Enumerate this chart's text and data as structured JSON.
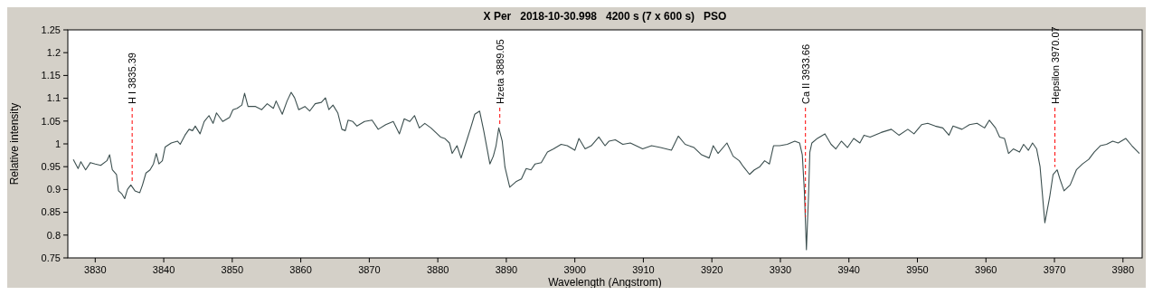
{
  "chart_data": {
    "type": "line",
    "title": "X Per   2018-10-30.998   4200 s (7 x 600 s)   PSO",
    "xlabel": "Wavelength (Angstrom)",
    "ylabel": "Relative intensity",
    "xlim": [
      3826,
      3982.8
    ],
    "xticks": [
      3830,
      3840,
      3850,
      3860,
      3870,
      3880,
      3890,
      3900,
      3910,
      3920,
      3930,
      3940,
      3950,
      3960,
      3970,
      3980
    ],
    "ylim": [
      0.75,
      1.25
    ],
    "yticks": [
      0.75,
      0.8,
      0.85,
      0.9,
      0.95,
      1,
      1.05,
      1.1,
      1.15,
      1.2,
      1.25
    ],
    "grid": false,
    "series": [
      {
        "color": "#3c4f4f",
        "x": [
          3826.8,
          3827.5,
          3827.9,
          3828.6,
          3829.3,
          3830,
          3830.8,
          3831.7,
          3832.1,
          3832.5,
          3833.1,
          3833.4,
          3833.9,
          3834.3,
          3834.7,
          3835.2,
          3835.8,
          3836.5,
          3836.9,
          3837.4,
          3838,
          3838.5,
          3838.9,
          3839.3,
          3839.8,
          3840.2,
          3841.1,
          3842,
          3842.4,
          3843.1,
          3843.7,
          3844.2,
          3844.6,
          3845.3,
          3845.9,
          3846.6,
          3847.2,
          3847.7,
          3848.6,
          3849.6,
          3850.1,
          3850.7,
          3851.4,
          3851.8,
          3852.3,
          3853.4,
          3854.3,
          3855.1,
          3856,
          3856.4,
          3857.3,
          3858,
          3858.6,
          3859.1,
          3859.7,
          3860.6,
          3861.3,
          3862.1,
          3863,
          3863.6,
          3864.1,
          3864.7,
          3865.4,
          3866,
          3866.5,
          3866.9,
          3867.6,
          3868.2,
          3869.3,
          3870.4,
          3871.3,
          3872.4,
          3873.5,
          3874.4,
          3875.1,
          3875.9,
          3876.6,
          3877.3,
          3878.1,
          3879,
          3879.7,
          3880.4,
          3881,
          3881.7,
          3882.1,
          3882.8,
          3883.4,
          3884.1,
          3884.8,
          3885.4,
          3886.1,
          3886.7,
          3887.2,
          3887.6,
          3888.1,
          3888.5,
          3888.9,
          3889.4,
          3889.8,
          3890.5,
          3891.4,
          3892.2,
          3892.9,
          3893.6,
          3894.2,
          3895.1,
          3896,
          3896.9,
          3898,
          3898.9,
          3900,
          3900.6,
          3901.5,
          3902.4,
          3903.5,
          3904.4,
          3905,
          3905.9,
          3907,
          3908.1,
          3909.9,
          3911.2,
          3912.5,
          3914.1,
          3915.1,
          3916.1,
          3917.4,
          3918.5,
          3919.6,
          3920.2,
          3920.9,
          3922.2,
          3923.1,
          3924,
          3924.6,
          3925.5,
          3926.2,
          3927,
          3927.7,
          3928.4,
          3929,
          3929.9,
          3931,
          3932.1,
          3932.8,
          3933.2,
          3933.5,
          3933.8,
          3934.1,
          3934.3,
          3934.6,
          3935.4,
          3936.5,
          3937.4,
          3938.1,
          3938.9,
          3939.8,
          3940.7,
          3941.6,
          3942.2,
          3943.1,
          3944.7,
          3946.2,
          3947.3,
          3948.6,
          3949.5,
          3950.6,
          3951.5,
          3952.6,
          3953.7,
          3954.6,
          3955.2,
          3956.5,
          3957.6,
          3958.7,
          3959.8,
          3960.5,
          3961.4,
          3962,
          3962.7,
          3963.3,
          3964,
          3964.9,
          3965.5,
          3966.2,
          3966.8,
          3967.4,
          3967.9,
          3968.6,
          3969.3,
          3969.8,
          3970.4,
          3970.8,
          3971.4,
          3972.3,
          3973.2,
          3974.1,
          3975,
          3975.8,
          3976.7,
          3977.6,
          3978.5,
          3979.3,
          3980.4,
          3981.3,
          3982.4
        ],
        "values": [
          0.966,
          0.946,
          0.961,
          0.943,
          0.959,
          0.956,
          0.953,
          0.963,
          0.976,
          0.943,
          0.933,
          0.897,
          0.89,
          0.88,
          0.9,
          0.91,
          0.897,
          0.893,
          0.91,
          0.936,
          0.943,
          0.956,
          0.979,
          0.956,
          0.963,
          0.993,
          1.002,
          1.006,
          0.999,
          1.019,
          1.032,
          1.029,
          1.039,
          1.022,
          1.049,
          1.062,
          1.045,
          1.068,
          1.049,
          1.058,
          1.075,
          1.078,
          1.085,
          1.111,
          1.082,
          1.082,
          1.075,
          1.088,
          1.078,
          1.094,
          1.065,
          1.094,
          1.113,
          1.101,
          1.075,
          1.082,
          1.072,
          1.088,
          1.091,
          1.101,
          1.075,
          1.085,
          1.068,
          1.032,
          1.029,
          1.052,
          1.049,
          1.039,
          1.049,
          1.052,
          1.032,
          1.042,
          1.049,
          1.022,
          1.055,
          1.049,
          1.062,
          1.035,
          1.045,
          1.035,
          1.025,
          1.015,
          1.012,
          1.002,
          0.979,
          0.996,
          0.969,
          1.002,
          1.035,
          1.065,
          1.072,
          1.029,
          0.989,
          0.956,
          0.973,
          0.996,
          1.035,
          1.006,
          0.949,
          0.905,
          0.917,
          0.923,
          0.946,
          0.943,
          0.956,
          0.959,
          0.982,
          0.989,
          0.999,
          0.996,
          0.986,
          1.012,
          0.989,
          0.996,
          1.015,
          0.996,
          1.006,
          1.009,
          0.999,
          1.002,
          0.989,
          0.996,
          0.992,
          0.986,
          1.017,
          0.999,
          0.992,
          0.976,
          0.969,
          0.996,
          0.979,
          1.002,
          0.973,
          0.963,
          0.95,
          0.933,
          0.943,
          0.95,
          0.963,
          0.956,
          0.996,
          0.996,
          0.999,
          1.006,
          1.002,
          0.976,
          0.897,
          0.768,
          0.883,
          0.982,
          1.002,
          1.012,
          1.022,
          0.999,
          0.989,
          1.006,
          0.992,
          1.012,
          1.002,
          1.019,
          1.015,
          1.025,
          1.032,
          1.019,
          1.032,
          1.022,
          1.042,
          1.045,
          1.039,
          1.035,
          1.019,
          1.039,
          1.032,
          1.042,
          1.045,
          1.035,
          1.052,
          1.035,
          1.015,
          1.012,
          0.979,
          0.989,
          0.982,
          0.999,
          0.986,
          1.002,
          0.989,
          0.95,
          0.827,
          0.883,
          0.933,
          0.943,
          0.923,
          0.897,
          0.91,
          0.943,
          0.956,
          0.966,
          0.982,
          0.996,
          0.999,
          1.006,
          1.002,
          1.012,
          0.996,
          0.979
        ]
      }
    ],
    "ref_lines": [
      {
        "axis": "x",
        "value": 3835.39,
        "label": "H I 3835.39",
        "color": "#ff0000",
        "line_style": "dashed"
      },
      {
        "axis": "x",
        "value": 3889.05,
        "label": "Hzeta 3889.05",
        "color": "#ff0000",
        "line_style": "dashed"
      },
      {
        "axis": "x",
        "value": 3933.66,
        "label": "Ca II 3933.66",
        "color": "#ff0000",
        "line_style": "dashed"
      },
      {
        "axis": "x",
        "value": 3970.07,
        "label": "Hepsilon 3970.07",
        "color": "#ff0000",
        "line_style": "dashed"
      }
    ]
  }
}
